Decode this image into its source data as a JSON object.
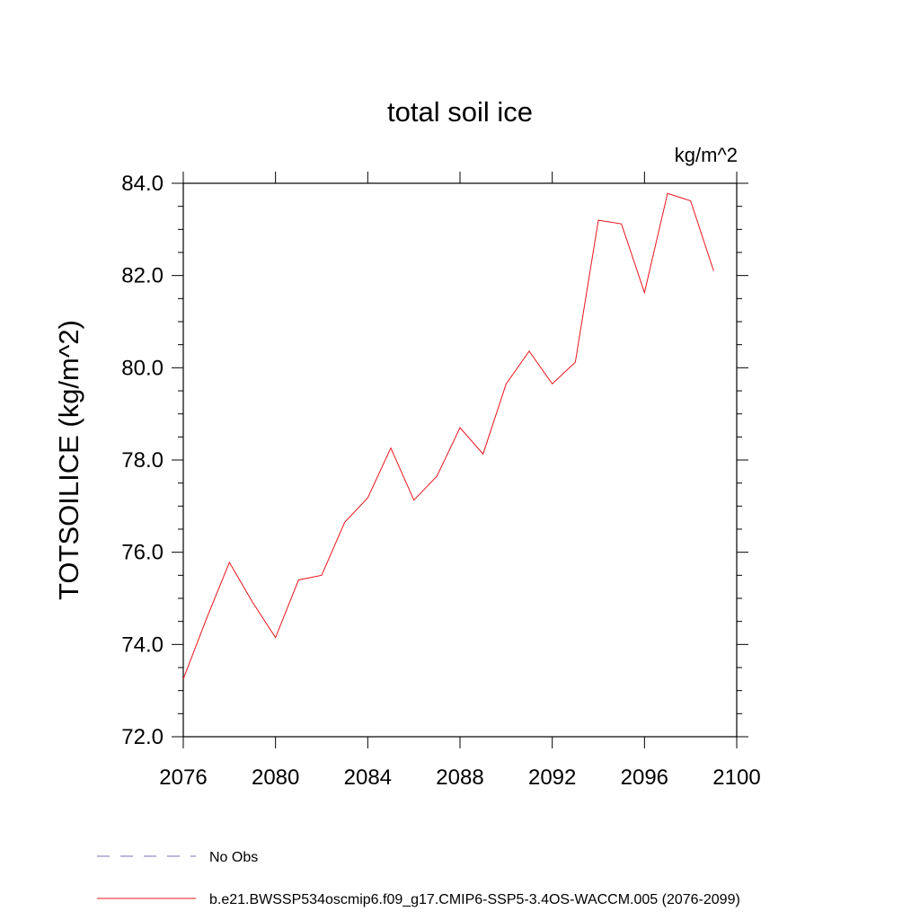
{
  "chart_data": {
    "type": "line",
    "title": "total soil ice",
    "units_label": "kg/m^2",
    "ylabel": "TOTSOILICE  (kg/m^2)",
    "xlabel": "",
    "xlim": [
      2076,
      2100
    ],
    "ylim": [
      72.0,
      84.0
    ],
    "x_ticks": [
      2076,
      2080,
      2084,
      2088,
      2092,
      2096,
      2100
    ],
    "x_tick_labels": [
      "2076",
      "2080",
      "2084",
      "2088",
      "2092",
      "2096",
      "2100"
    ],
    "y_ticks": [
      72.0,
      74.0,
      76.0,
      78.0,
      80.0,
      82.0,
      84.0
    ],
    "y_tick_labels": [
      "72.0",
      "74.0",
      "76.0",
      "78.0",
      "80.0",
      "82.0",
      "84.0"
    ],
    "grid": false,
    "legend_position": "bottom-left",
    "series": [
      {
        "name": "b.e21.BWSSP534oscmip6.f09_g17.CMIP6-SSP5-3.4OS-WACCM.005 (2076-2099)",
        "color": "#e8141c",
        "style": "solid",
        "x": [
          2076,
          2077,
          2078,
          2079,
          2080,
          2081,
          2082,
          2083,
          2084,
          2085,
          2086,
          2087,
          2088,
          2089,
          2090,
          2091,
          2092,
          2093,
          2094,
          2095,
          2096,
          2097,
          2098,
          2099
        ],
        "values": [
          73.25,
          74.55,
          75.78,
          74.92,
          74.15,
          75.4,
          75.5,
          76.65,
          77.18,
          78.26,
          77.13,
          77.65,
          78.7,
          78.13,
          79.65,
          80.36,
          79.65,
          80.12,
          83.2,
          83.12,
          81.63,
          83.78,
          83.62,
          82.1
        ]
      }
    ],
    "legend": [
      {
        "label": "No Obs",
        "color": "#7a6fb5",
        "style": "dashed"
      },
      {
        "label": "b.e21.BWSSP534oscmip6.f09_g17.CMIP6-SSP5-3.4OS-WACCM.005 (2076-2099)",
        "color": "#e8141c",
        "style": "solid"
      }
    ]
  }
}
